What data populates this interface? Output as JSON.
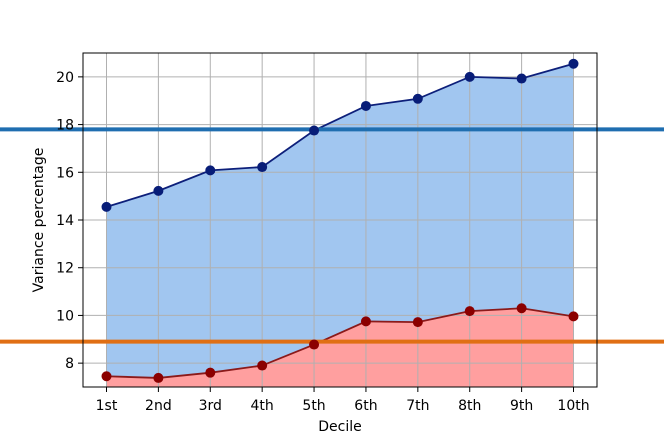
{
  "chart_data": {
    "type": "area",
    "xlabel": "Decile",
    "ylabel": "Variance percentage",
    "categories": [
      "1st",
      "2nd",
      "3rd",
      "4th",
      "5th",
      "6th",
      "7th",
      "8th",
      "9th",
      "10th"
    ],
    "ylim": [
      7.0,
      21.0
    ],
    "yticks": [
      8,
      10,
      12,
      14,
      16,
      18,
      20
    ],
    "grid": true,
    "series": [
      {
        "values": [
          14.55,
          15.22,
          16.08,
          16.22,
          17.75,
          18.78,
          19.08,
          20.0,
          19.93,
          20.55
        ],
        "line_color": "#0d1f7a",
        "marker_color": "#081d78",
        "fill_color": "#a1c6f0"
      },
      {
        "values": [
          7.45,
          7.38,
          7.6,
          7.9,
          8.78,
          9.75,
          9.72,
          10.18,
          10.3,
          9.96
        ],
        "line_color": "#8b1a1a",
        "marker_color": "#8b0000",
        "fill_color": "#ff9f9f"
      }
    ],
    "reference_lines": [
      {
        "value": 17.8,
        "color": "#1f6eb0"
      },
      {
        "value": 8.9,
        "color": "#e06f14"
      }
    ]
  }
}
